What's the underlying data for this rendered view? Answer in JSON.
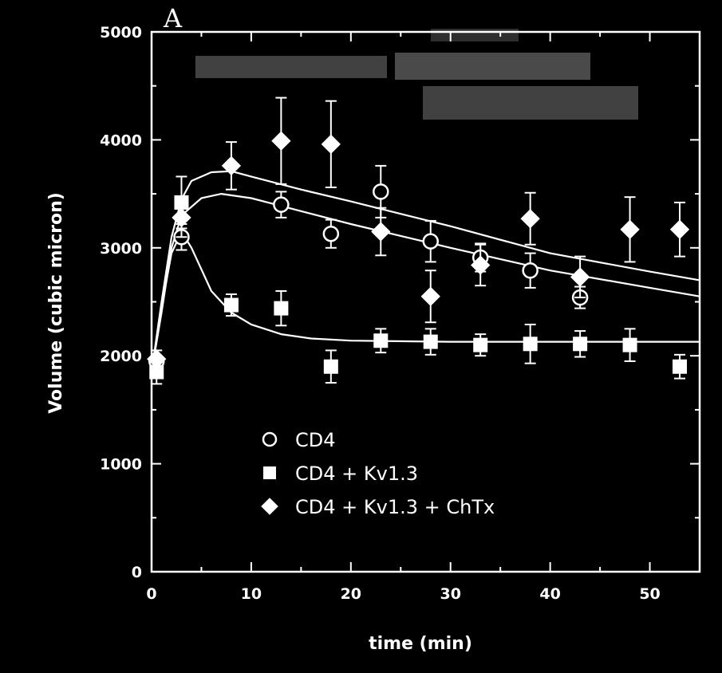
{
  "chart_data": {
    "type": "scatter",
    "panel_label": "A",
    "xlabel": "time (min)",
    "ylabel": "Volume (cubic micron)",
    "xlim": [
      0,
      55
    ],
    "ylim": [
      0,
      5000
    ],
    "x_ticks": [
      0,
      10,
      20,
      30,
      40,
      50
    ],
    "y_ticks": [
      0,
      1000,
      2000,
      3000,
      4000,
      5000
    ],
    "legend_position": "lower-center",
    "series": [
      {
        "name": "CD4",
        "marker": "open-circle",
        "points": [
          {
            "x": 0.5,
            "y": 1950,
            "err": 100
          },
          {
            "x": 3,
            "y": 3100,
            "err": 120
          },
          {
            "x": 13,
            "y": 3400,
            "err": 120
          },
          {
            "x": 18,
            "y": 3130,
            "err": 130
          },
          {
            "x": 23,
            "y": 3520,
            "err": 240
          },
          {
            "x": 28,
            "y": 3060,
            "err": 190
          },
          {
            "x": 33,
            "y": 2910,
            "err": 130
          },
          {
            "x": 38,
            "y": 2790,
            "err": 160
          },
          {
            "x": 43,
            "y": 2540,
            "err": 100
          }
        ],
        "fit": [
          [
            0,
            1850
          ],
          [
            1,
            2400
          ],
          [
            2,
            3000
          ],
          [
            3,
            3300
          ],
          [
            5,
            3460
          ],
          [
            7,
            3500
          ],
          [
            10,
            3460
          ],
          [
            15,
            3340
          ],
          [
            20,
            3220
          ],
          [
            30,
            3000
          ],
          [
            40,
            2790
          ],
          [
            50,
            2630
          ],
          [
            55,
            2550
          ]
        ]
      },
      {
        "name": "CD4 + Kv1.3",
        "marker": "filled-square",
        "points": [
          {
            "x": 0.5,
            "y": 1850,
            "err": 110
          },
          {
            "x": 3,
            "y": 3420,
            "err": 240
          },
          {
            "x": 8,
            "y": 2470,
            "err": 100
          },
          {
            "x": 13,
            "y": 2440,
            "err": 160
          },
          {
            "x": 18,
            "y": 1900,
            "err": 150
          },
          {
            "x": 23,
            "y": 2140,
            "err": 110
          },
          {
            "x": 28,
            "y": 2130,
            "err": 120
          },
          {
            "x": 33,
            "y": 2100,
            "err": 100
          },
          {
            "x": 38,
            "y": 2110,
            "err": 180
          },
          {
            "x": 43,
            "y": 2110,
            "err": 120
          },
          {
            "x": 48,
            "y": 2100,
            "err": 150
          },
          {
            "x": 53,
            "y": 1900,
            "err": 110
          }
        ],
        "fit": [
          [
            0,
            1850
          ],
          [
            1,
            2450
          ],
          [
            2,
            2950
          ],
          [
            3,
            3150
          ],
          [
            4,
            3000
          ],
          [
            5,
            2800
          ],
          [
            6,
            2600
          ],
          [
            8,
            2400
          ],
          [
            10,
            2290
          ],
          [
            13,
            2200
          ],
          [
            16,
            2160
          ],
          [
            20,
            2140
          ],
          [
            30,
            2130
          ],
          [
            40,
            2130
          ],
          [
            55,
            2130
          ]
        ]
      },
      {
        "name": "CD4 + Kv1.3 + ChTx",
        "marker": "filled-diamond",
        "points": [
          {
            "x": 0.5,
            "y": 1970,
            "err": 0
          },
          {
            "x": 3,
            "y": 3280,
            "err": 180
          },
          {
            "x": 8,
            "y": 3760,
            "err": 220
          },
          {
            "x": 13,
            "y": 3990,
            "err": 400
          },
          {
            "x": 18,
            "y": 3960,
            "err": 400
          },
          {
            "x": 23,
            "y": 3150,
            "err": 220
          },
          {
            "x": 28,
            "y": 2550,
            "err": 240
          },
          {
            "x": 33,
            "y": 2840,
            "err": 190
          },
          {
            "x": 38,
            "y": 3270,
            "err": 240
          },
          {
            "x": 43,
            "y": 2730,
            "err": 190
          },
          {
            "x": 48,
            "y": 3170,
            "err": 300
          },
          {
            "x": 53,
            "y": 3170,
            "err": 250
          }
        ],
        "fit": [
          [
            0,
            1850
          ],
          [
            1,
            2500
          ],
          [
            2,
            3100
          ],
          [
            3,
            3450
          ],
          [
            4,
            3620
          ],
          [
            6,
            3700
          ],
          [
            8,
            3710
          ],
          [
            10,
            3660
          ],
          [
            15,
            3540
          ],
          [
            20,
            3430
          ],
          [
            30,
            3200
          ],
          [
            40,
            2950
          ],
          [
            50,
            2780
          ],
          [
            55,
            2700
          ]
        ]
      }
    ]
  }
}
